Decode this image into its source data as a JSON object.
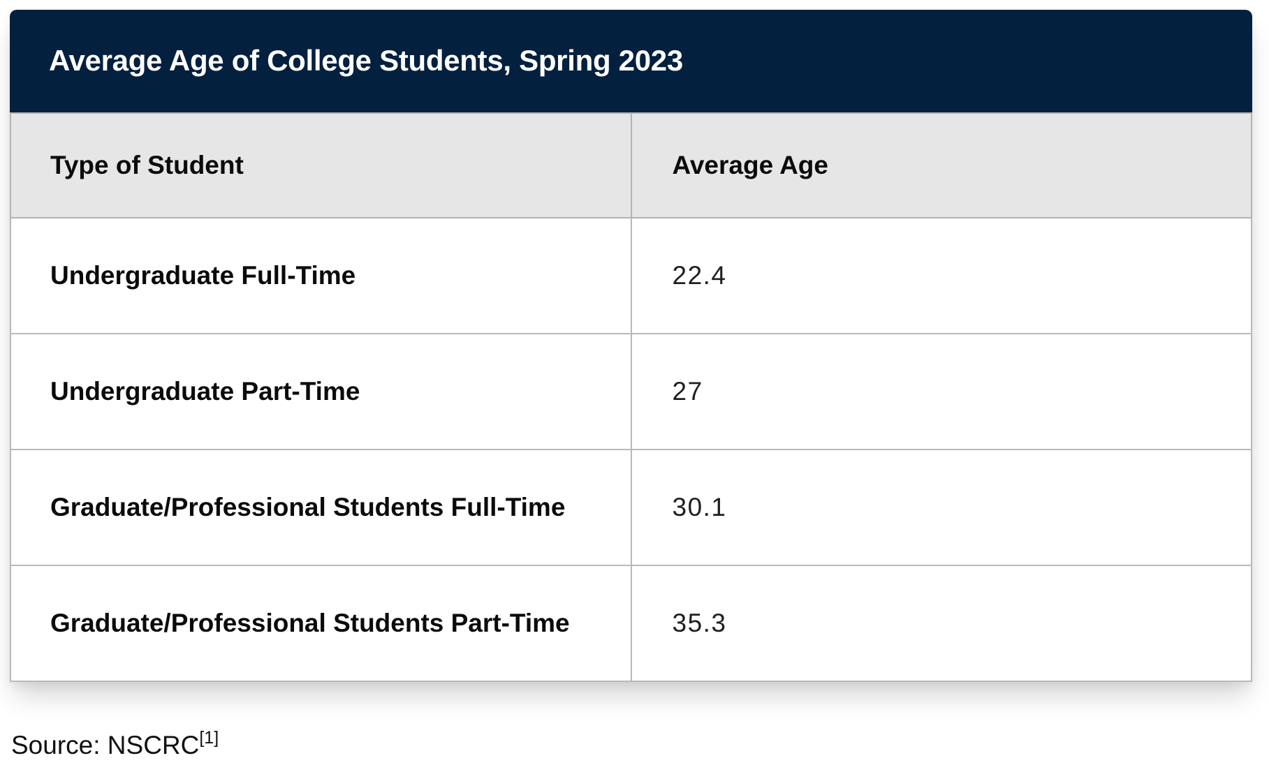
{
  "table": {
    "title": "Average Age of College Students, Spring 2023",
    "columns": [
      "Type of Student",
      "Average Age"
    ],
    "rows": [
      {
        "type": "Undergraduate Full-Time",
        "age": "22.4"
      },
      {
        "type": "Undergraduate Part-Time",
        "age": "27"
      },
      {
        "type": "Graduate/Professional Students Full-Time",
        "age": "30.1"
      },
      {
        "type": "Graduate/Professional Students Part-Time",
        "age": "35.3"
      }
    ]
  },
  "source": {
    "label": "Source: NSCRC",
    "footnote": "[1]"
  },
  "colors": {
    "title_bar_bg": "#04203f",
    "title_text": "#ffffff",
    "column_header_bg": "#e6e6e6",
    "border": "#b9b9b9",
    "row_bg": "#ffffff",
    "label_text": "#0b0b0b",
    "value_text": "#1f1f1f"
  },
  "chart_data": {
    "type": "table",
    "title": "Average Age of College Students, Spring 2023",
    "columns": [
      "Type of Student",
      "Average Age"
    ],
    "categories": [
      "Undergraduate Full-Time",
      "Undergraduate Part-Time",
      "Graduate/Professional Students Full-Time",
      "Graduate/Professional Students Part-Time"
    ],
    "values": [
      22.4,
      27,
      30.1,
      35.3
    ],
    "source": "Source: NSCRC[1]"
  }
}
